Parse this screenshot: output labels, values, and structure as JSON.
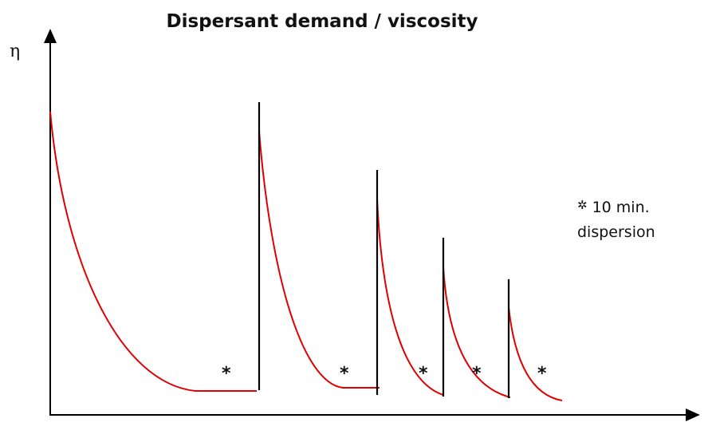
{
  "title": "Dispersant demand / viscosity",
  "y_axis_label": "η",
  "legend": {
    "symbol": "✲",
    "line1": "10 min.",
    "line2": "dispersion"
  },
  "markers": [
    "*",
    "*",
    "*",
    "*",
    "*"
  ],
  "colors": {
    "curve": "#e00000",
    "lines": "#000000"
  }
}
